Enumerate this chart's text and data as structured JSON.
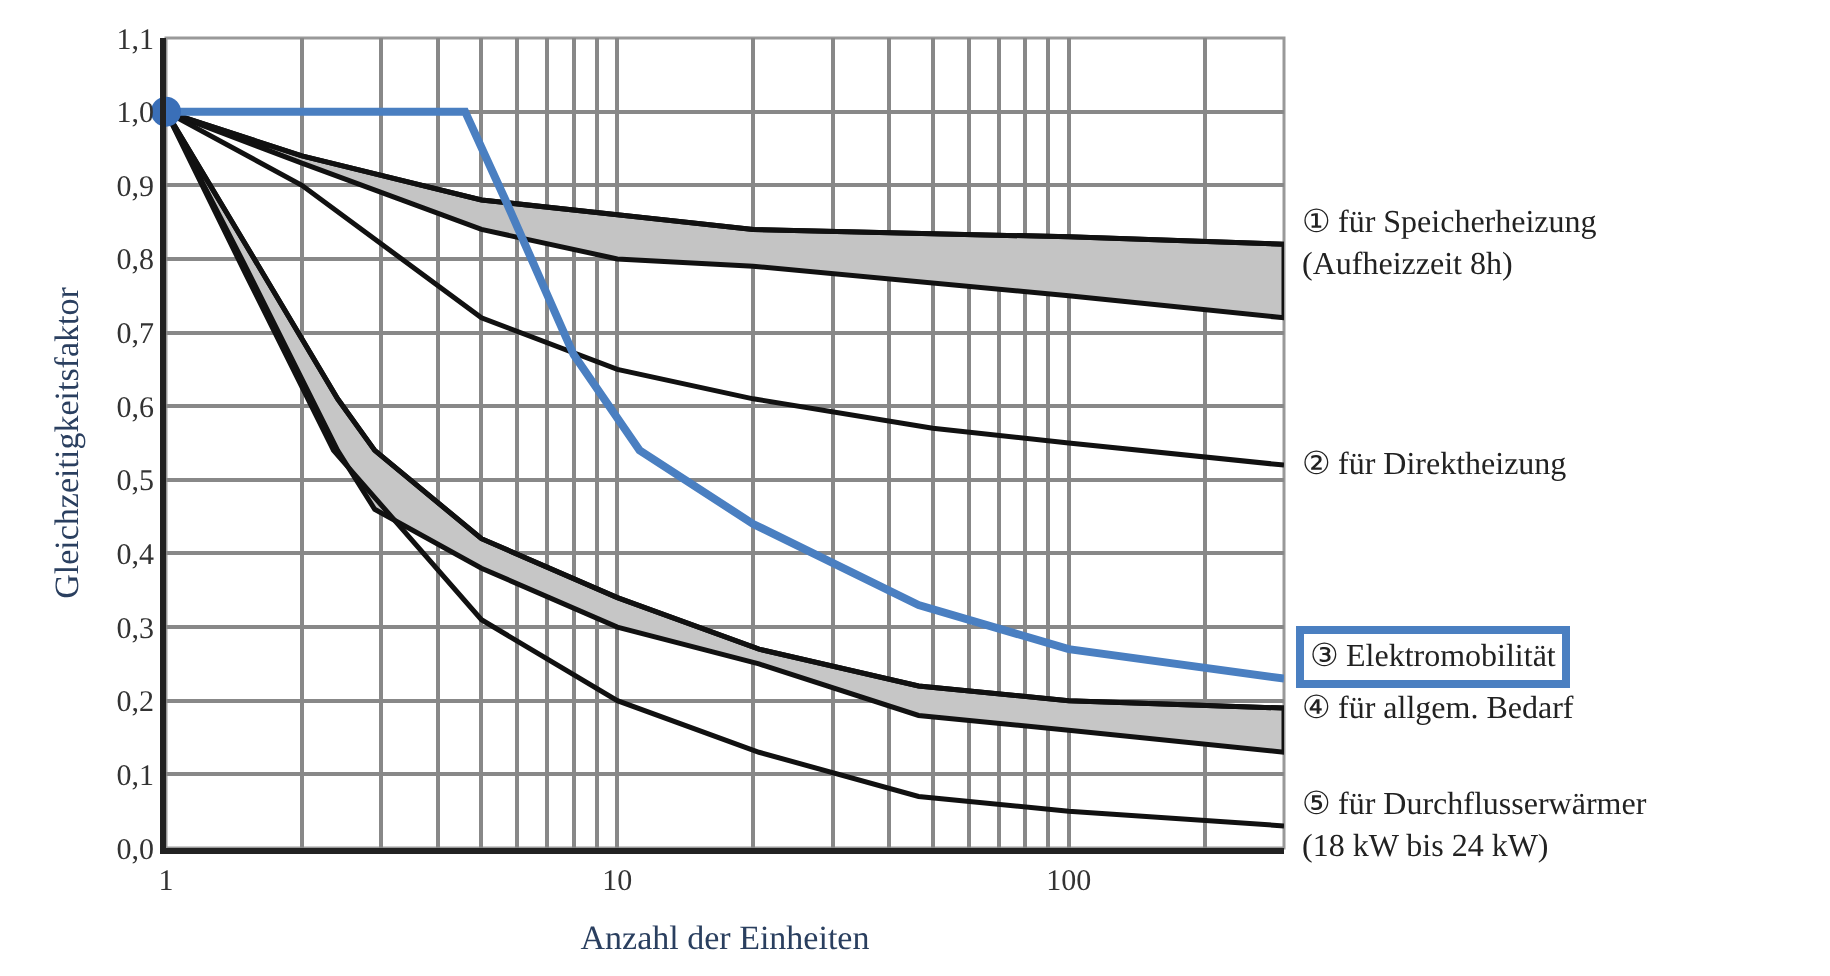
{
  "chart_data": {
    "type": "line",
    "xlabel": "Anzahl der Einheiten",
    "ylabel": "Gleichzeitigkeitsfaktor",
    "log": "x",
    "grid": true,
    "marker": "none",
    "line_style": "solid",
    "xlim": [
      1,
      300
    ],
    "ylim": [
      0,
      1.1
    ],
    "xticks": [
      1,
      {
        "value": 2,
        "label": null
      },
      {
        "value": 3,
        "label": null
      },
      {
        "value": 4,
        "label": null
      },
      {
        "value": 5,
        "label": null
      },
      {
        "value": 6,
        "label": null
      },
      {
        "value": 7,
        "label": null
      },
      {
        "value": 8,
        "label": null
      },
      {
        "value": 9,
        "label": null
      },
      10,
      {
        "value": 20,
        "label": null
      },
      {
        "value": 30,
        "label": null
      },
      {
        "value": 40,
        "label": null
      },
      {
        "value": 50,
        "label": null
      },
      {
        "value": 60,
        "label": null
      },
      {
        "value": 70,
        "label": null
      },
      {
        "value": 80,
        "label": null
      },
      {
        "value": 90,
        "label": null
      },
      100,
      {
        "value": 200,
        "label": null
      }
    ],
    "yticks": [
      {
        "value": 0,
        "label": "0,0"
      },
      {
        "value": 0.1,
        "label": "0,1"
      },
      {
        "value": 0.2,
        "label": "0,2"
      },
      {
        "value": 0.3,
        "label": "0,3"
      },
      {
        "value": 0.4,
        "label": "0,4"
      },
      {
        "value": 0.5,
        "label": "0,5"
      },
      {
        "value": 0.6,
        "label": "0,6"
      },
      {
        "value": 0.7,
        "label": "0,7"
      },
      {
        "value": 0.8,
        "label": "0,8"
      },
      {
        "value": 0.9,
        "label": "0,9"
      },
      {
        "value": 1.0,
        "label": "1,0"
      },
      {
        "value": 1.1,
        "label": "1,1"
      }
    ],
    "series": [
      {
        "name": "① für Speicherheizung\n(Aufheizzeit 8h)",
        "color": "#111111",
        "x": [
          1,
          2,
          5,
          10,
          20,
          100,
          300
        ],
        "values": [
          1.0,
          0.94,
          0.88,
          0.86,
          0.84,
          0.83,
          0.82
        ],
        "upper": [
          1.0,
          0.94,
          0.88,
          0.86,
          0.84,
          0.83,
          0.82
        ],
        "lower": [
          1.0,
          0.93,
          0.84,
          0.8,
          0.79,
          0.75,
          0.72
        ]
      },
      {
        "name": "② für Direktheizung",
        "color": "#111111",
        "x": [
          1,
          2,
          5,
          10,
          20,
          50,
          100,
          300
        ],
        "values": [
          1.0,
          0.9,
          0.72,
          0.65,
          0.61,
          0.57,
          0.55,
          0.52
        ]
      },
      {
        "name": "③ Elektromobilität",
        "color": "#4a7fc1",
        "x": [
          1,
          4.6,
          5.65,
          8,
          11.2,
          20,
          46.5,
          100,
          300
        ],
        "values": [
          1.0,
          1.0,
          0.88,
          0.67,
          0.54,
          0.44,
          0.33,
          0.27,
          0.23
        ]
      },
      {
        "name": "④ für allgem. Bedarf",
        "color": "#111111",
        "x": [
          1,
          1.5,
          2.4,
          2.9,
          5,
          10,
          20.6,
          46.5,
          100,
          300
        ],
        "values": [
          1.0,
          0.82,
          0.61,
          0.54,
          0.42,
          0.34,
          0.27,
          0.22,
          0.2,
          0.19
        ],
        "upper": [
          1.0,
          0.82,
          0.61,
          0.54,
          0.42,
          0.34,
          0.27,
          0.22,
          0.2,
          0.19
        ],
        "lower": [
          1.0,
          0.79,
          0.54,
          0.46,
          0.38,
          0.3,
          0.25,
          0.18,
          0.16,
          0.13
        ]
      },
      {
        "name": "⑤ für Durchflusserwärmer\n(18 kW bis 24 kW)",
        "color": "#111111",
        "x": [
          1,
          1.5,
          2.35,
          5,
          10,
          20.6,
          46.5,
          100,
          300
        ],
        "values": [
          1.0,
          0.78,
          0.54,
          0.31,
          0.2,
          0.13,
          0.07,
          0.05,
          0.03
        ]
      },
      {
        "type": "scatter",
        "marker": "circle",
        "color": "#3a6fb8",
        "x": [
          1
        ],
        "values": [
          1.0
        ]
      }
    ]
  }
}
